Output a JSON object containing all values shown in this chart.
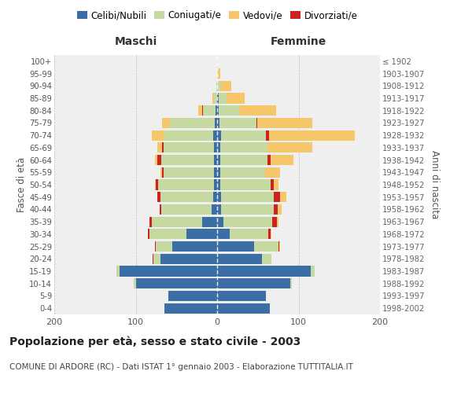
{
  "age_groups": [
    "0-4",
    "5-9",
    "10-14",
    "15-19",
    "20-24",
    "25-29",
    "30-34",
    "35-39",
    "40-44",
    "45-49",
    "50-54",
    "55-59",
    "60-64",
    "65-69",
    "70-74",
    "75-79",
    "80-84",
    "85-89",
    "90-94",
    "95-99",
    "100+"
  ],
  "birth_years": [
    "1998-2002",
    "1993-1997",
    "1988-1992",
    "1983-1987",
    "1978-1982",
    "1973-1977",
    "1968-1972",
    "1963-1967",
    "1958-1962",
    "1953-1957",
    "1948-1952",
    "1943-1947",
    "1938-1942",
    "1933-1937",
    "1928-1932",
    "1923-1927",
    "1918-1922",
    "1913-1917",
    "1908-1912",
    "1903-1907",
    "≤ 1902"
  ],
  "males": {
    "celibe": [
      65,
      60,
      100,
      120,
      70,
      55,
      38,
      18,
      7,
      5,
      4,
      4,
      4,
      4,
      5,
      3,
      2,
      0,
      0,
      0,
      0
    ],
    "coniugato": [
      0,
      0,
      2,
      4,
      8,
      20,
      45,
      62,
      62,
      65,
      68,
      62,
      65,
      62,
      60,
      55,
      15,
      4,
      1,
      0,
      0
    ],
    "vedovo": [
      0,
      0,
      0,
      0,
      0,
      0,
      0,
      0,
      0,
      0,
      1,
      2,
      3,
      5,
      15,
      10,
      5,
      2,
      0,
      0,
      0
    ],
    "divorziato": [
      0,
      0,
      0,
      0,
      1,
      1,
      2,
      3,
      2,
      3,
      3,
      2,
      4,
      2,
      0,
      0,
      1,
      0,
      0,
      0,
      0
    ]
  },
  "females": {
    "nubile": [
      65,
      60,
      90,
      115,
      55,
      45,
      15,
      8,
      5,
      5,
      4,
      4,
      4,
      4,
      5,
      3,
      2,
      2,
      0,
      0,
      0
    ],
    "coniugata": [
      0,
      0,
      2,
      5,
      12,
      30,
      48,
      60,
      65,
      65,
      62,
      55,
      58,
      58,
      55,
      45,
      25,
      10,
      5,
      1,
      0
    ],
    "vedova": [
      0,
      0,
      0,
      0,
      0,
      1,
      1,
      2,
      5,
      8,
      5,
      18,
      28,
      55,
      105,
      68,
      45,
      22,
      12,
      3,
      0
    ],
    "divorziata": [
      0,
      0,
      0,
      0,
      0,
      1,
      3,
      5,
      4,
      7,
      4,
      0,
      4,
      0,
      4,
      1,
      0,
      0,
      0,
      0,
      0
    ]
  },
  "colors": {
    "celibe": "#3a6ea5",
    "coniugato": "#c5d9a0",
    "vedovo": "#f5c76a",
    "divorziato": "#cc2222"
  },
  "xlim": 200,
  "title": "Popolazione per età, sesso e stato civile - 2003",
  "subtitle": "COMUNE DI ARDORE (RC) - Dati ISTAT 1° gennaio 2003 - Elaborazione TUTTITALIA.IT",
  "ylabel_left": "Fasce di età",
  "ylabel_right": "Anni di nascita",
  "xlabel_left": "Maschi",
  "xlabel_right": "Femmine",
  "background_color": "#ffffff",
  "plot_bg": "#efefef",
  "grid_color": "#cccccc"
}
